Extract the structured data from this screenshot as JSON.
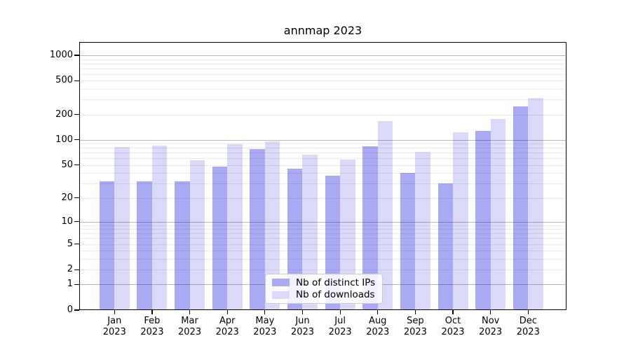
{
  "title": "annmap 2023",
  "chart_data": {
    "type": "bar",
    "title": "annmap 2023",
    "scale": "log1p",
    "categories": [
      "Jan",
      "Feb",
      "Mar",
      "Apr",
      "May",
      "Jun",
      "Jul",
      "Aug",
      "Sep",
      "Oct",
      "Nov",
      "Dec"
    ],
    "category_year": "2023",
    "series": [
      {
        "name": "Nb of distinct IPs",
        "color": "#aaaaf4",
        "values": [
          32,
          32,
          32,
          48,
          77,
          45,
          37,
          84,
          40,
          30,
          128,
          248
        ]
      },
      {
        "name": "Nb of downloads",
        "color": "#dadaf8",
        "values": [
          82,
          85,
          57,
          89,
          96,
          67,
          58,
          168,
          72,
          122,
          176,
          312
        ]
      }
    ],
    "yticks": [
      0,
      1,
      2,
      5,
      10,
      20,
      50,
      100,
      200,
      500,
      1000
    ],
    "ylim": [
      0,
      1000
    ],
    "xlabel": "",
    "ylabel": "",
    "grid": true,
    "legend_position": "lower center"
  },
  "legend": {
    "items": [
      {
        "label": "Nb of distinct IPs",
        "color": "#aaaaf4"
      },
      {
        "label": "Nb of downloads",
        "color": "#dadaf8"
      }
    ]
  },
  "colors": {
    "series_dark": "#aaaaf4",
    "series_light": "#dadaf8",
    "grid_major": "rgba(0,0,0,0.27)",
    "grid_minor": "rgba(0,0,0,0.075)",
    "spine": "#000000",
    "background": "#ffffff"
  }
}
